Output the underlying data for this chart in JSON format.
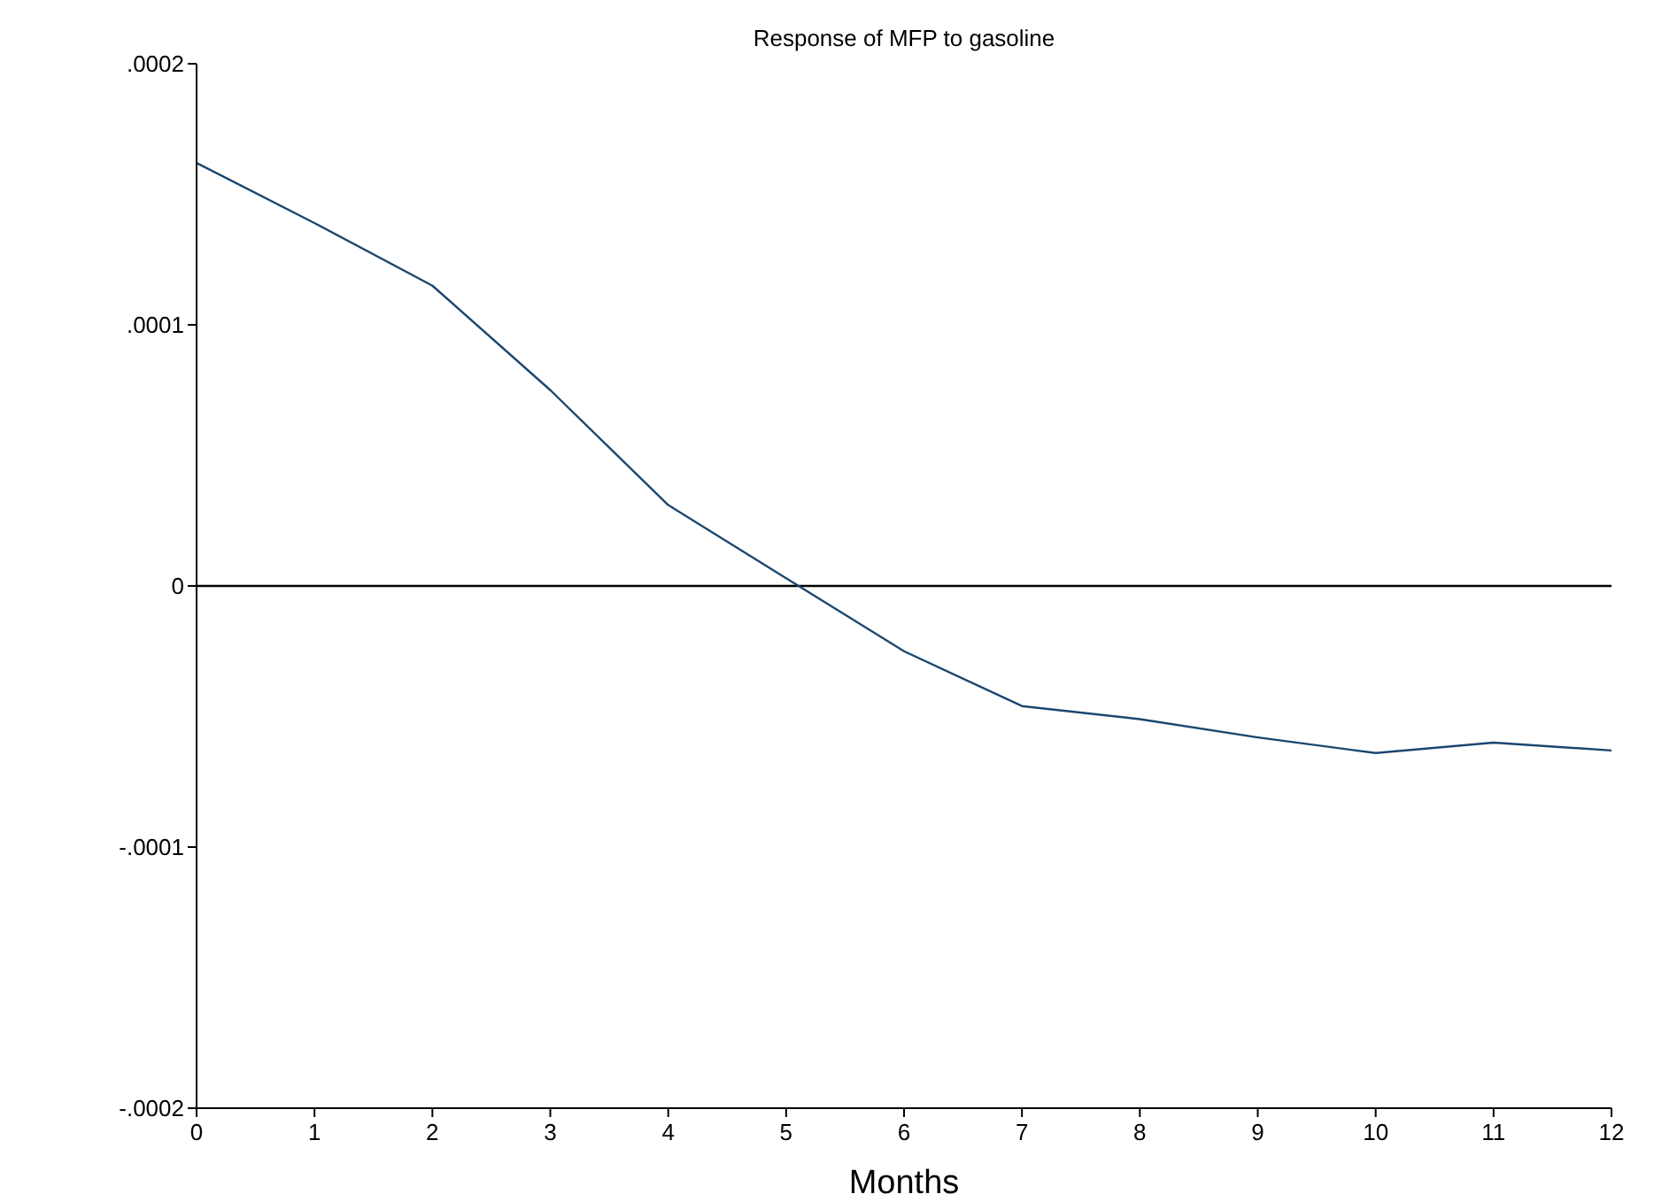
{
  "chart_data": {
    "type": "line",
    "title": "Response of MFP to gasoline",
    "xlabel": "Months",
    "x": [
      0,
      1,
      2,
      3,
      4,
      5,
      6,
      7,
      8,
      9,
      10,
      11,
      12
    ],
    "series": [
      {
        "color": "#1a476f",
        "values": [
          0.000162,
          0.000139,
          0.000115,
          7.5e-05,
          3.1e-05,
          3e-06,
          -2.5e-05,
          -4.6e-05,
          -5.1e-05,
          -5.8e-05,
          -6.4e-05,
          -6e-05,
          -6.3e-05
        ]
      }
    ],
    "xlim": [
      0,
      12
    ],
    "xticks": [
      0,
      1,
      2,
      3,
      4,
      5,
      6,
      7,
      8,
      9,
      10,
      11,
      12
    ],
    "ylim": [
      -0.0002,
      0.0002
    ],
    "yticks": [
      {
        "value": -0.0002,
        "label": "-.0002"
      },
      {
        "value": -0.0001,
        "label": "-.0001"
      },
      0,
      {
        "value": 0.0001,
        "label": ".0001"
      },
      {
        "value": 0.0002,
        "label": ".0002"
      }
    ],
    "ref_lines": [
      {
        "axis": "y",
        "value": 0,
        "color": "#000000"
      }
    ],
    "grid": false,
    "marker": "none",
    "line_style": "solid"
  }
}
